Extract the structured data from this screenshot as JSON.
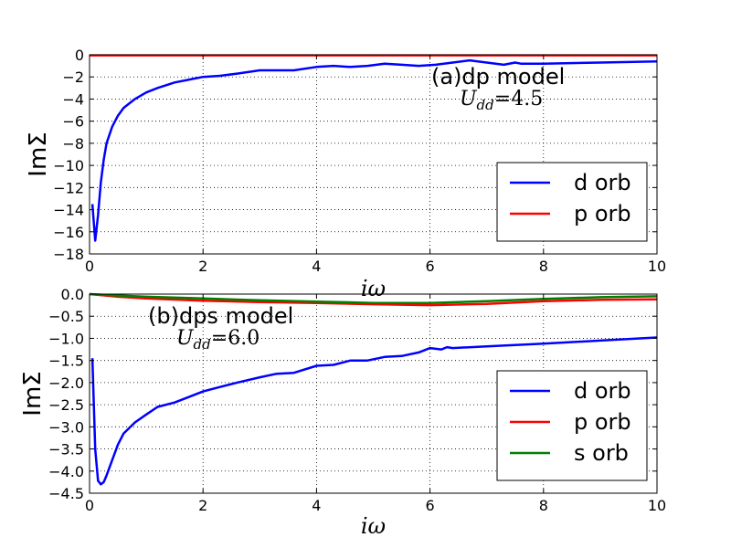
{
  "chart_data": [
    {
      "type": "line",
      "ylabel": "ImΣ",
      "xlabel": "iω",
      "xlim": [
        0,
        10
      ],
      "ylim": [
        -18,
        0
      ],
      "xticks": [
        0,
        2,
        4,
        6,
        8,
        10
      ],
      "xtick_labels": [
        "0",
        "2",
        "4",
        "6",
        "8",
        "10"
      ],
      "yticks": [
        0,
        -2,
        -4,
        -6,
        -8,
        -10,
        -12,
        -14,
        -16,
        -18
      ],
      "ytick_labels": [
        "0",
        "−2",
        "−4",
        "−6",
        "−8",
        "−10",
        "−12",
        "−14",
        "−16",
        "−18"
      ],
      "grid": true,
      "legend_position": "lower right",
      "annotation": {
        "title": "(a)dp model",
        "subtitle": "U_dd = 4.5"
      },
      "series": [
        {
          "name": "d orb",
          "color": "#0000ff",
          "x": [
            0.05,
            0.1,
            0.15,
            0.2,
            0.25,
            0.3,
            0.4,
            0.5,
            0.6,
            0.8,
            1.0,
            1.2,
            1.5,
            1.8,
            2.0,
            2.3,
            2.6,
            3.0,
            3.3,
            3.6,
            4.0,
            4.3,
            4.6,
            4.9,
            5.2,
            5.5,
            5.8,
            6.1,
            6.4,
            6.7,
            7.0,
            7.3,
            7.5,
            7.6,
            8.0,
            9.0,
            10.0
          ],
          "y": [
            -13.5,
            -16.8,
            -14.5,
            -11.5,
            -9.5,
            -8.0,
            -6.5,
            -5.5,
            -4.8,
            -4.0,
            -3.4,
            -3.0,
            -2.5,
            -2.2,
            -2.0,
            -1.9,
            -1.7,
            -1.4,
            -1.4,
            -1.4,
            -1.1,
            -1.0,
            -1.1,
            -1.0,
            -0.8,
            -0.9,
            -1.0,
            -0.9,
            -0.7,
            -0.5,
            -0.7,
            -0.9,
            -0.7,
            -0.8,
            -0.8,
            -0.7,
            -0.6
          ]
        },
        {
          "name": "p orb",
          "color": "#ff0000",
          "x": [
            0,
            2,
            4,
            6,
            8,
            10
          ],
          "y": [
            -0.05,
            -0.05,
            -0.05,
            -0.05,
            -0.05,
            -0.05
          ]
        }
      ]
    },
    {
      "type": "line",
      "ylabel": "ImΣ",
      "xlabel": "iω",
      "xlim": [
        0,
        10
      ],
      "ylim": [
        -4.5,
        0
      ],
      "xticks": [
        0,
        2,
        4,
        6,
        8,
        10
      ],
      "xtick_labels": [
        "0",
        "2",
        "4",
        "6",
        "8",
        "10"
      ],
      "yticks": [
        0,
        -0.5,
        -1.0,
        -1.5,
        -2.0,
        -2.5,
        -3.0,
        -3.5,
        -4.0,
        -4.5
      ],
      "ytick_labels": [
        "0.0",
        "−0.5",
        "−1.0",
        "−1.5",
        "−2.0",
        "−2.5",
        "−3.0",
        "−3.5",
        "−4.0",
        "−4.5"
      ],
      "grid": true,
      "legend_position": "lower right",
      "annotation": {
        "title": "(b)dps model",
        "subtitle": "U_dd = 6.0"
      },
      "series": [
        {
          "name": "d orb",
          "color": "#0000ff",
          "x": [
            0.05,
            0.1,
            0.15,
            0.2,
            0.25,
            0.3,
            0.4,
            0.5,
            0.6,
            0.8,
            1.0,
            1.2,
            1.5,
            1.8,
            2.0,
            2.3,
            2.6,
            3.0,
            3.3,
            3.6,
            4.0,
            4.3,
            4.6,
            4.9,
            5.2,
            5.5,
            5.8,
            6.0,
            6.2,
            6.3,
            6.4,
            7.0,
            8.0,
            9.0,
            10.0
          ],
          "y": [
            -1.45,
            -3.5,
            -4.22,
            -4.3,
            -4.25,
            -4.1,
            -3.75,
            -3.4,
            -3.15,
            -2.9,
            -2.72,
            -2.55,
            -2.45,
            -2.3,
            -2.2,
            -2.1,
            -2.0,
            -1.88,
            -1.8,
            -1.78,
            -1.62,
            -1.6,
            -1.5,
            -1.5,
            -1.42,
            -1.4,
            -1.32,
            -1.22,
            -1.25,
            -1.2,
            -1.22,
            -1.18,
            -1.12,
            -1.05,
            -0.98
          ]
        },
        {
          "name": "p orb",
          "color": "#ff0000",
          "x": [
            0,
            0.5,
            1,
            2,
            3,
            4,
            5,
            6,
            7,
            8,
            9,
            10
          ],
          "y": [
            0,
            -0.06,
            -0.1,
            -0.15,
            -0.18,
            -0.2,
            -0.23,
            -0.25,
            -0.22,
            -0.16,
            -0.13,
            -0.12
          ]
        },
        {
          "name": "s orb",
          "color": "#008000",
          "x": [
            0,
            0.5,
            1,
            2,
            3,
            4,
            5,
            6,
            7,
            8,
            9,
            10
          ],
          "y": [
            0,
            -0.03,
            -0.06,
            -0.1,
            -0.14,
            -0.17,
            -0.2,
            -0.2,
            -0.16,
            -0.11,
            -0.07,
            -0.05
          ]
        }
      ]
    }
  ]
}
